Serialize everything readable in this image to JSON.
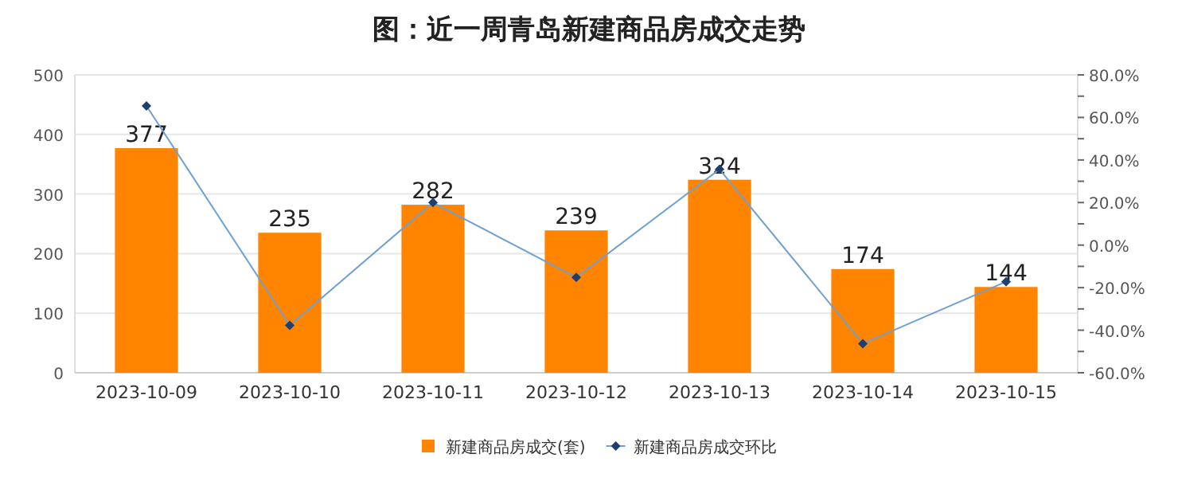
{
  "chart_data": {
    "type": "bar",
    "title": "图：近一周青岛新建商品房成交走势",
    "categories": [
      "2023-10-09",
      "2023-10-10",
      "2023-10-11",
      "2023-10-12",
      "2023-10-13",
      "2023-10-14",
      "2023-10-15"
    ],
    "series": [
      {
        "name": "新建商品房成交(套)",
        "color": "#ff8400",
        "values": [
          377,
          235,
          282,
          239,
          324,
          174,
          144
        ],
        "value_labels": [
          "377",
          "235",
          "282",
          "239",
          "324",
          "174",
          "144"
        ]
      },
      {
        "name": "新建商品房成交环比",
        "type": "line",
        "axis": "y2",
        "color": "#6fa0d0",
        "marker": "diamond",
        "values": [
          65.4,
          -37.7,
          20.0,
          -15.2,
          35.6,
          -46.3,
          -17.2
        ]
      }
    ],
    "ylim": [
      0,
      500
    ],
    "yticks": [
      0,
      100,
      200,
      300,
      400,
      500
    ],
    "y2lim": [
      -60,
      80
    ],
    "y2ticks": [
      {
        "value": -60,
        "label": "-60.0%"
      },
      {
        "value": -50,
        "label": null
      },
      {
        "value": -40,
        "label": "-40.0%"
      },
      {
        "value": -30,
        "label": null
      },
      {
        "value": -20,
        "label": "-20.0%"
      },
      {
        "value": -10,
        "label": null
      },
      {
        "value": 0,
        "label": "0.0%"
      },
      {
        "value": 10,
        "label": null
      },
      {
        "value": 20,
        "label": "20.0%"
      },
      {
        "value": 30,
        "label": null
      },
      {
        "value": 40,
        "label": "40.0%"
      },
      {
        "value": 50,
        "label": null
      },
      {
        "value": 60,
        "label": "60.0%"
      },
      {
        "value": 70,
        "label": null
      },
      {
        "value": 80,
        "label": "80.0%"
      }
    ],
    "grid": "y",
    "legend": "bottom"
  }
}
